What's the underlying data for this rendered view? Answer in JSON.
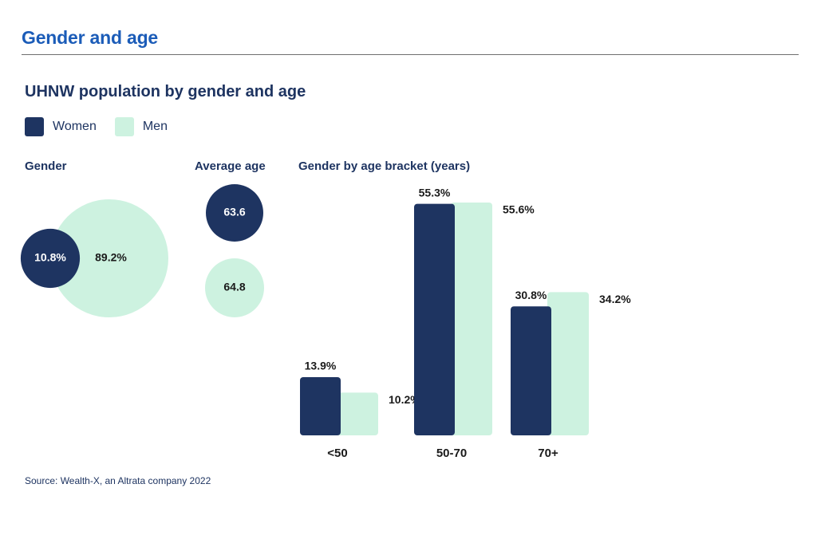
{
  "page": {
    "title": "Gender and age",
    "source": "Source: Wealth-X, an Altrata company 2022"
  },
  "colors": {
    "women": "#1e3461",
    "men": "#cdf2e0",
    "accent": "#1b5cb8"
  },
  "legend": [
    {
      "name": "women",
      "label": "Women"
    },
    {
      "name": "men",
      "label": "Men"
    }
  ],
  "chart_data": [
    {
      "type": "pie",
      "title": "UHNW population by gender and age",
      "panel_title": "Gender",
      "slices": [
        {
          "name": "Women",
          "value": 10.8,
          "label": "10.8%"
        },
        {
          "name": "Men",
          "value": 89.2,
          "label": "89.2%"
        }
      ]
    },
    {
      "type": "bubble",
      "panel_title": "Average age",
      "series": [
        {
          "name": "Women",
          "value": 63.6,
          "label": "63.6"
        },
        {
          "name": "Men",
          "value": 64.8,
          "label": "64.8"
        }
      ]
    },
    {
      "type": "bar",
      "panel_title": "Gender by age bracket (years)",
      "categories": [
        "<50",
        "50-70",
        "70+"
      ],
      "series": [
        {
          "name": "Women",
          "values": [
            13.9,
            55.3,
            30.8
          ],
          "labels": [
            "13.9%",
            "55.3%",
            "30.8%"
          ]
        },
        {
          "name": "Men",
          "values": [
            10.2,
            55.6,
            34.2
          ],
          "labels": [
            "10.2%",
            "55.6%",
            "34.2%"
          ]
        }
      ],
      "ylim": [
        0,
        55.6
      ]
    }
  ]
}
